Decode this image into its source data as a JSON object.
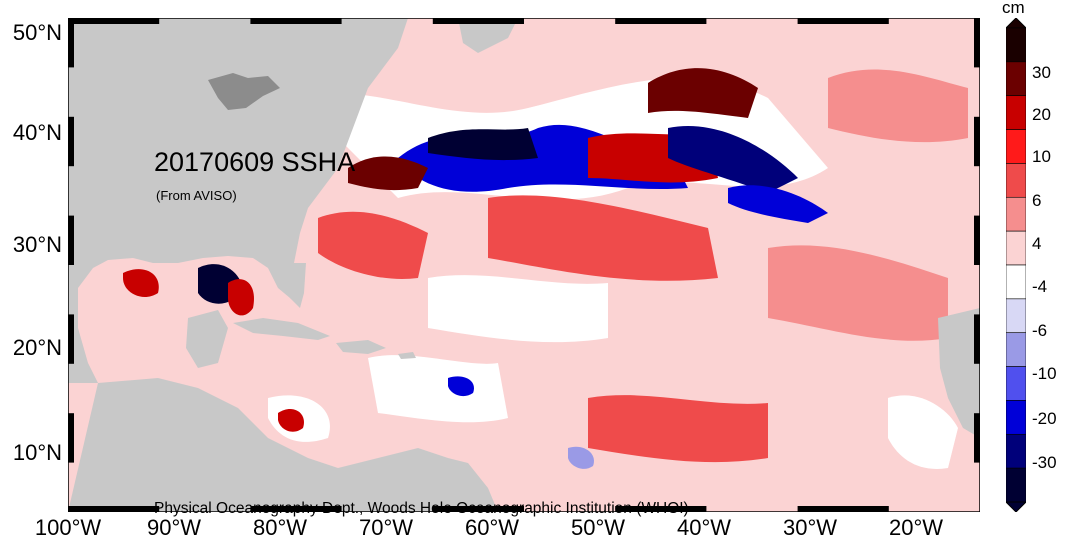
{
  "map": {
    "title": "20170609 SSHA",
    "source": "(From AVISO)",
    "credit": "Physical Oceanography Dept., Woods Hole Oceanographic Institution (WHOI)",
    "lat_labels": [
      "50°N",
      "40°N",
      "30°N",
      "20°N",
      "10°N"
    ],
    "lon_labels": [
      "100°W",
      "90°W",
      "80°W",
      "70°W",
      "60°W",
      "50°W",
      "40°W",
      "30°W",
      "20°W"
    ]
  },
  "colorbar": {
    "unit": "cm",
    "tick_labels": [
      "30",
      "20",
      "10",
      "6",
      "4",
      "-4",
      "-6",
      "-10",
      "-20",
      "-30"
    ],
    "colors": [
      "#1a0000",
      "#6b0000",
      "#c80000",
      "#ff1a1a",
      "#ef4b4b",
      "#f58e8e",
      "#fbd3d3",
      "#ffffff",
      "#d8d8f5",
      "#9a9ae6",
      "#5050ee",
      "#0000d8",
      "#00007a",
      "#000033"
    ]
  },
  "palette": {
    "land": "#c8c8c8",
    "ocean_background": "#fbd3d3"
  }
}
